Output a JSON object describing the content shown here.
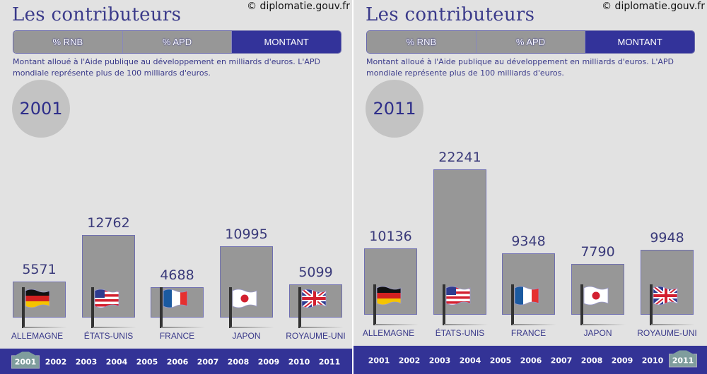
{
  "panels": [
    {
      "title": "Les contributeurs",
      "copyright": "© diplomatie.gouv.fr",
      "tabs": [
        {
          "label": "% RNB",
          "active": false
        },
        {
          "label": "% APD",
          "active": false
        },
        {
          "label": "MONTANT",
          "active": true
        }
      ],
      "description": "Montant alloué à l'Aide publique au développement en milliards d'euros. L'APD mondiale représente plus de 100 milliards d'euros.",
      "year": "2001",
      "timeline": {
        "years": [
          "2001",
          "2002",
          "2003",
          "2004",
          "2005",
          "2006",
          "2007",
          "2008",
          "2009",
          "2010",
          "2011"
        ],
        "active": "2001"
      }
    },
    {
      "title": "Les contributeurs",
      "copyright": "© diplomatie.gouv.fr",
      "tabs": [
        {
          "label": "% RNB",
          "active": false
        },
        {
          "label": "% APD",
          "active": false
        },
        {
          "label": "MONTANT",
          "active": true
        }
      ],
      "description": "Montant alloué à l'Aide publique au développement en milliards d'euros. L'APD mondiale représente plus de 100 milliards d'euros.",
      "year": "2011",
      "timeline": {
        "years": [
          "2001",
          "2002",
          "2003",
          "2004",
          "2005",
          "2006",
          "2007",
          "2008",
          "2009",
          "2010",
          "2011"
        ],
        "active": "2011"
      }
    }
  ],
  "chart_data": [
    {
      "type": "bar",
      "title": "Les contributeurs — 2001",
      "categories": [
        "ALLEMAGNE",
        "ÉTATS-UNIS",
        "FRANCE",
        "JAPON",
        "ROYAUME-UNI"
      ],
      "values": [
        5571,
        12762,
        4688,
        10995,
        5099
      ],
      "flags": [
        "germany",
        "usa",
        "france",
        "japan",
        "uk"
      ]
    },
    {
      "type": "bar",
      "title": "Les contributeurs — 2011",
      "categories": [
        "ALLEMAGNE",
        "ÉTATS-UNIS",
        "FRANCE",
        "JAPON",
        "ROYAUME-UNI"
      ],
      "values": [
        10136,
        22241,
        9348,
        7790,
        9948
      ],
      "flags": [
        "germany",
        "usa",
        "france",
        "japan",
        "uk"
      ]
    }
  ],
  "colors": {
    "accent": "#33339a",
    "bar": "#979797",
    "text": "#3a3a8a",
    "background": "#e2e2e2"
  }
}
